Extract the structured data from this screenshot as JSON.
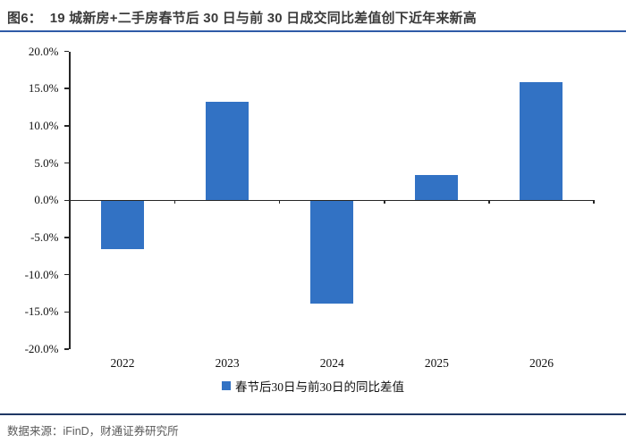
{
  "header": {
    "figure_label": "图6：",
    "title": "19 城新房+二手房春节后 30 日与前 30 日成交同比差值创下近年来新高"
  },
  "chart_data": {
    "type": "bar",
    "title": "19 城新房+二手房春节后 30 日与前 30 日成交同比差值创下近年来新高",
    "categories": [
      "2022",
      "2023",
      "2024",
      "2025",
      "2026"
    ],
    "series": [
      {
        "name": "春节后30日与前30日的同比差值",
        "values": [
          -6.5,
          13.2,
          -13.8,
          3.4,
          15.9
        ]
      }
    ],
    "xlabel": "",
    "ylabel": "",
    "ylim": [
      -20,
      20
    ],
    "ytick_step": 5,
    "ytick_labels": [
      "20.0%",
      "15.0%",
      "10.0%",
      "5.0%",
      "0.0%",
      "-5.0%",
      "-10.0%",
      "-15.0%",
      "-20.0%"
    ],
    "ytick_values": [
      20,
      15,
      10,
      5,
      0,
      -5,
      -10,
      -15,
      -20
    ],
    "grid": false,
    "legend_position": "bottom",
    "bar_color": "#3272c4"
  },
  "legend": {
    "marker_color": "#3272c4",
    "label": "春节后30日与前30日的同比差值"
  },
  "footer": {
    "source_text": "数据来源：iFinD，财通证券研究所"
  },
  "colors": {
    "bar_blue": "#3272c4",
    "title_underline_blue": "#2f5ba7",
    "footer_line_navy": "#1f3864",
    "title_text": "#3b3b3b",
    "footer_text_gray": "#595959",
    "axis_black": "#262626"
  }
}
